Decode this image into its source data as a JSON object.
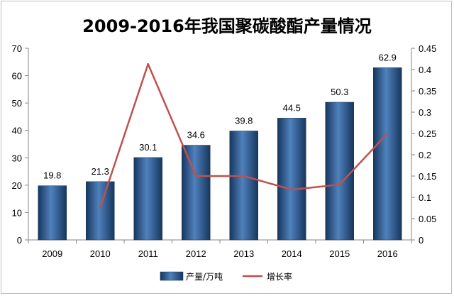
{
  "chart_data": {
    "type": "bar",
    "title": "2009-2016年我国聚碳酸酯产量情况",
    "categories": [
      "2009",
      "2010",
      "2011",
      "2012",
      "2013",
      "2014",
      "2015",
      "2016"
    ],
    "series": [
      {
        "name": "产量/万吨",
        "type": "bar",
        "axis": "left",
        "values": [
          19.8,
          21.3,
          30.1,
          34.6,
          39.8,
          44.5,
          50.3,
          62.9
        ],
        "labels": [
          "19.8",
          "21.3",
          "30.1",
          "34.6",
          "39.8",
          "44.5",
          "50.3",
          "62.9"
        ],
        "color": "#1F4E8C"
      },
      {
        "name": "增长率",
        "type": "line",
        "axis": "right",
        "values": [
          null,
          0.076,
          0.413,
          0.15,
          0.15,
          0.118,
          0.13,
          0.25
        ],
        "color": "#C0504D"
      }
    ],
    "y_left": {
      "min": 0,
      "max": 70,
      "ticks": [
        "0",
        "10",
        "20",
        "30",
        "40",
        "50",
        "60",
        "70"
      ]
    },
    "y_right": {
      "min": 0,
      "max": 0.45,
      "ticks": [
        "0",
        "0.05",
        "0.1",
        "0.15",
        "0.2",
        "0.25",
        "0.3",
        "0.35",
        "0.4",
        "0.45"
      ]
    },
    "grid": false,
    "legend_position": "bottom"
  }
}
